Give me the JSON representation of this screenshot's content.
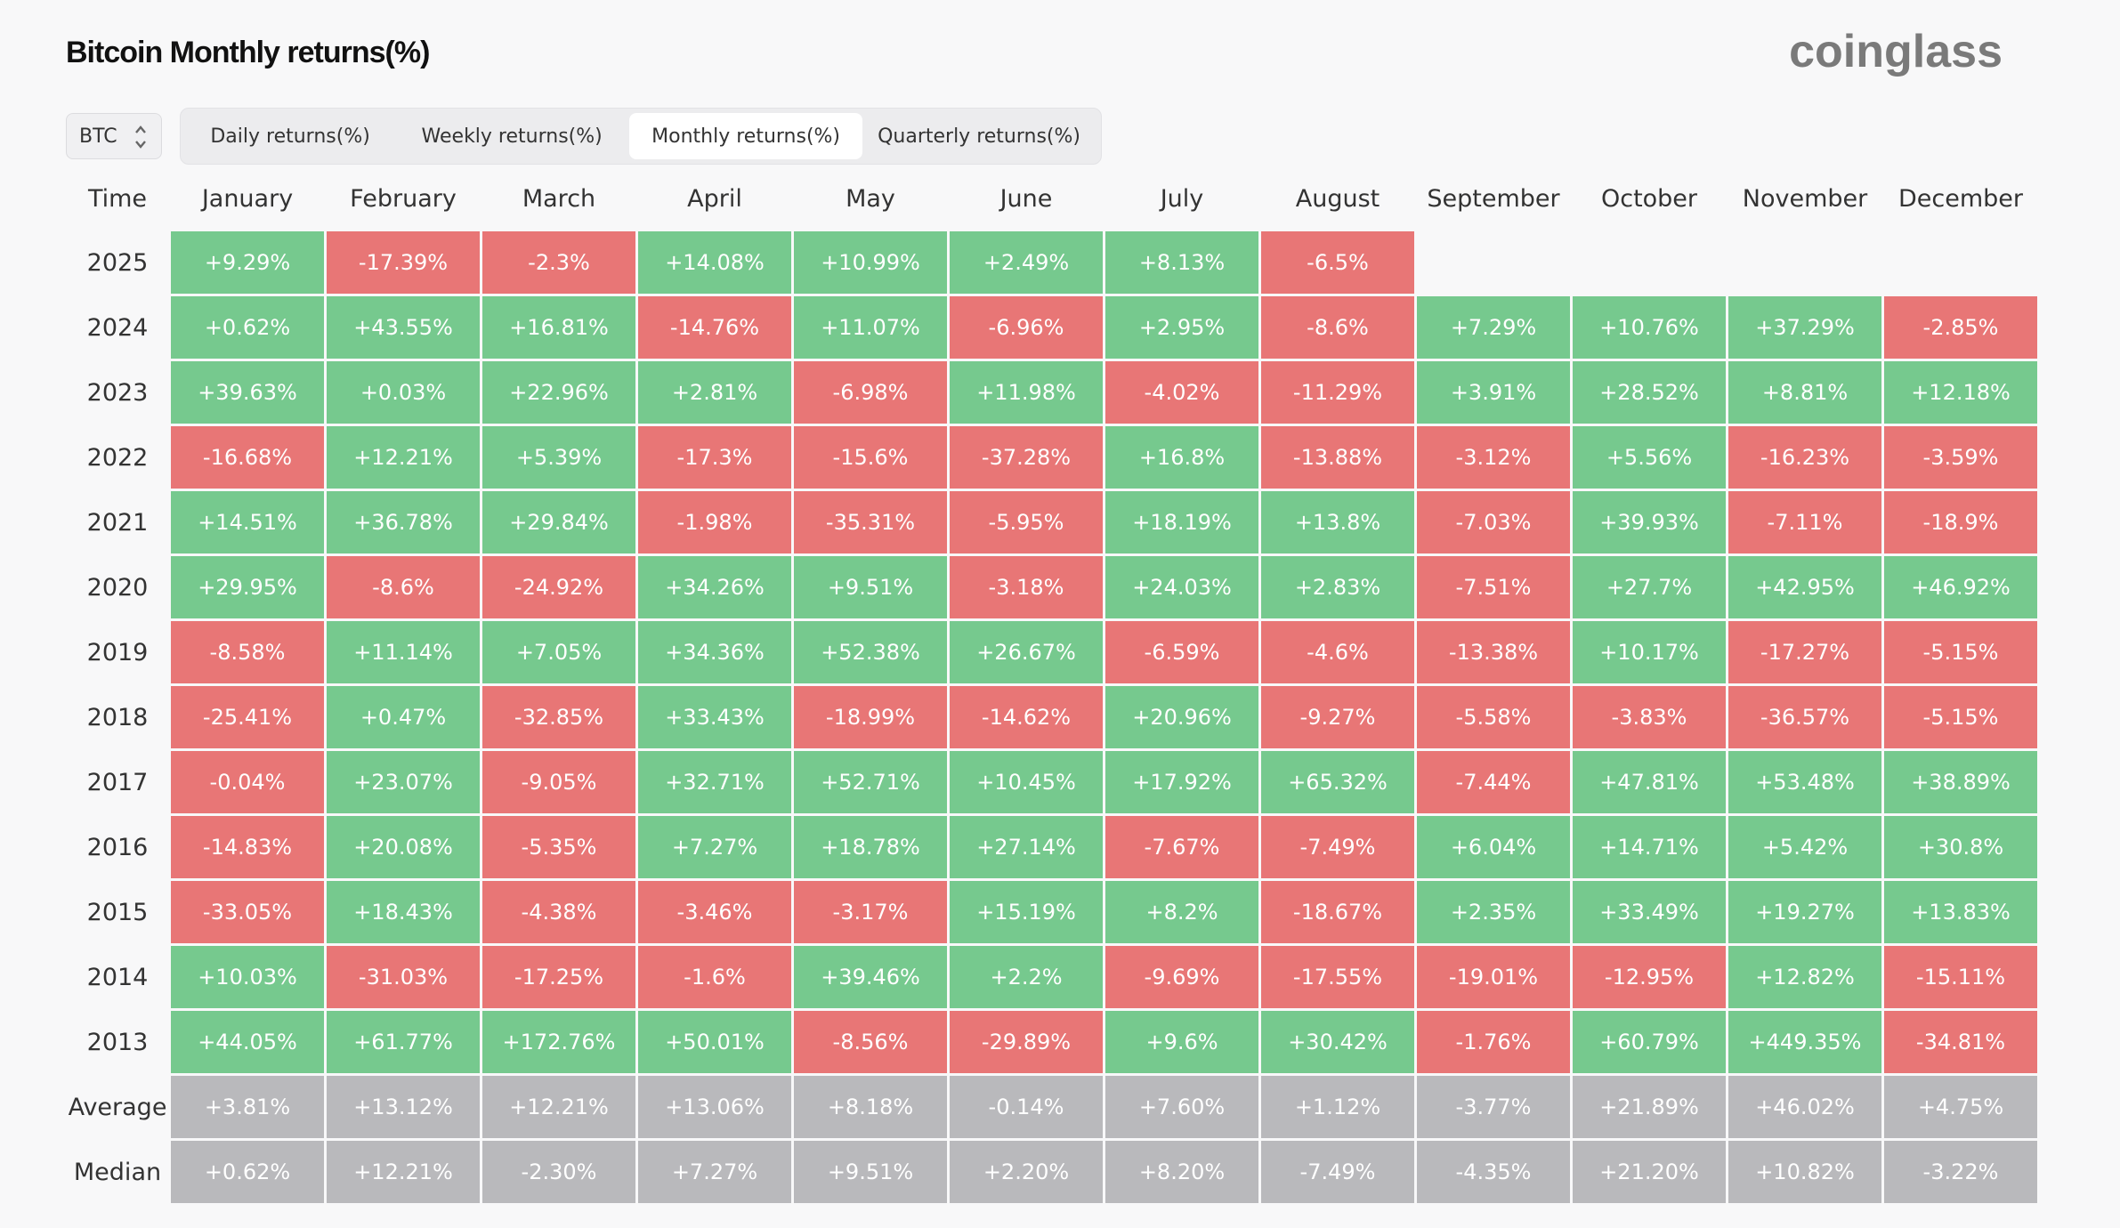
{
  "title": "Bitcoin Monthly returns(%)",
  "brand": "coinglass",
  "selector": {
    "value": "BTC"
  },
  "tabs": [
    {
      "label": "Daily returns(%)",
      "active": false
    },
    {
      "label": "Weekly returns(%)",
      "active": false
    },
    {
      "label": "Monthly returns(%)",
      "active": true
    },
    {
      "label": "Quarterly returns(%)",
      "active": false
    }
  ],
  "colors": {
    "positive": "#76c98e",
    "negative": "#e87676",
    "summary": "#b9b9bc"
  },
  "chart_data": {
    "type": "table",
    "title": "Bitcoin Monthly returns(%)",
    "corner_label": "Time",
    "columns": [
      "January",
      "February",
      "March",
      "April",
      "May",
      "June",
      "July",
      "August",
      "September",
      "October",
      "November",
      "December"
    ],
    "rows": [
      {
        "label": "2025",
        "values": [
          "+9.29%",
          "-17.39%",
          "-2.3%",
          "+14.08%",
          "+10.99%",
          "+2.49%",
          "+8.13%",
          "-6.5%",
          null,
          null,
          null,
          null
        ]
      },
      {
        "label": "2024",
        "values": [
          "+0.62%",
          "+43.55%",
          "+16.81%",
          "-14.76%",
          "+11.07%",
          "-6.96%",
          "+2.95%",
          "-8.6%",
          "+7.29%",
          "+10.76%",
          "+37.29%",
          "-2.85%"
        ]
      },
      {
        "label": "2023",
        "values": [
          "+39.63%",
          "+0.03%",
          "+22.96%",
          "+2.81%",
          "-6.98%",
          "+11.98%",
          "-4.02%",
          "-11.29%",
          "+3.91%",
          "+28.52%",
          "+8.81%",
          "+12.18%"
        ]
      },
      {
        "label": "2022",
        "values": [
          "-16.68%",
          "+12.21%",
          "+5.39%",
          "-17.3%",
          "-15.6%",
          "-37.28%",
          "+16.8%",
          "-13.88%",
          "-3.12%",
          "+5.56%",
          "-16.23%",
          "-3.59%"
        ]
      },
      {
        "label": "2021",
        "values": [
          "+14.51%",
          "+36.78%",
          "+29.84%",
          "-1.98%",
          "-35.31%",
          "-5.95%",
          "+18.19%",
          "+13.8%",
          "-7.03%",
          "+39.93%",
          "-7.11%",
          "-18.9%"
        ]
      },
      {
        "label": "2020",
        "values": [
          "+29.95%",
          "-8.6%",
          "-24.92%",
          "+34.26%",
          "+9.51%",
          "-3.18%",
          "+24.03%",
          "+2.83%",
          "-7.51%",
          "+27.7%",
          "+42.95%",
          "+46.92%"
        ]
      },
      {
        "label": "2019",
        "values": [
          "-8.58%",
          "+11.14%",
          "+7.05%",
          "+34.36%",
          "+52.38%",
          "+26.67%",
          "-6.59%",
          "-4.6%",
          "-13.38%",
          "+10.17%",
          "-17.27%",
          "-5.15%"
        ]
      },
      {
        "label": "2018",
        "values": [
          "-25.41%",
          "+0.47%",
          "-32.85%",
          "+33.43%",
          "-18.99%",
          "-14.62%",
          "+20.96%",
          "-9.27%",
          "-5.58%",
          "-3.83%",
          "-36.57%",
          "-5.15%"
        ]
      },
      {
        "label": "2017",
        "values": [
          "-0.04%",
          "+23.07%",
          "-9.05%",
          "+32.71%",
          "+52.71%",
          "+10.45%",
          "+17.92%",
          "+65.32%",
          "-7.44%",
          "+47.81%",
          "+53.48%",
          "+38.89%"
        ]
      },
      {
        "label": "2016",
        "values": [
          "-14.83%",
          "+20.08%",
          "-5.35%",
          "+7.27%",
          "+18.78%",
          "+27.14%",
          "-7.67%",
          "-7.49%",
          "+6.04%",
          "+14.71%",
          "+5.42%",
          "+30.8%"
        ]
      },
      {
        "label": "2015",
        "values": [
          "-33.05%",
          "+18.43%",
          "-4.38%",
          "-3.46%",
          "-3.17%",
          "+15.19%",
          "+8.2%",
          "-18.67%",
          "+2.35%",
          "+33.49%",
          "+19.27%",
          "+13.83%"
        ]
      },
      {
        "label": "2014",
        "values": [
          "+10.03%",
          "-31.03%",
          "-17.25%",
          "-1.6%",
          "+39.46%",
          "+2.2%",
          "-9.69%",
          "-17.55%",
          "-19.01%",
          "-12.95%",
          "+12.82%",
          "-15.11%"
        ]
      },
      {
        "label": "2013",
        "values": [
          "+44.05%",
          "+61.77%",
          "+172.76%",
          "+50.01%",
          "-8.56%",
          "-29.89%",
          "+9.6%",
          "+30.42%",
          "-1.76%",
          "+60.79%",
          "+449.35%",
          "-34.81%"
        ]
      }
    ],
    "summary_rows": [
      {
        "label": "Average",
        "values": [
          "+3.81%",
          "+13.12%",
          "+12.21%",
          "+13.06%",
          "+8.18%",
          "-0.14%",
          "+7.60%",
          "+1.12%",
          "-3.77%",
          "+21.89%",
          "+46.02%",
          "+4.75%"
        ]
      },
      {
        "label": "Median",
        "values": [
          "+0.62%",
          "+12.21%",
          "-2.30%",
          "+7.27%",
          "+9.51%",
          "+2.20%",
          "+8.20%",
          "-7.49%",
          "-4.35%",
          "+21.20%",
          "+10.82%",
          "-3.22%"
        ]
      }
    ]
  }
}
